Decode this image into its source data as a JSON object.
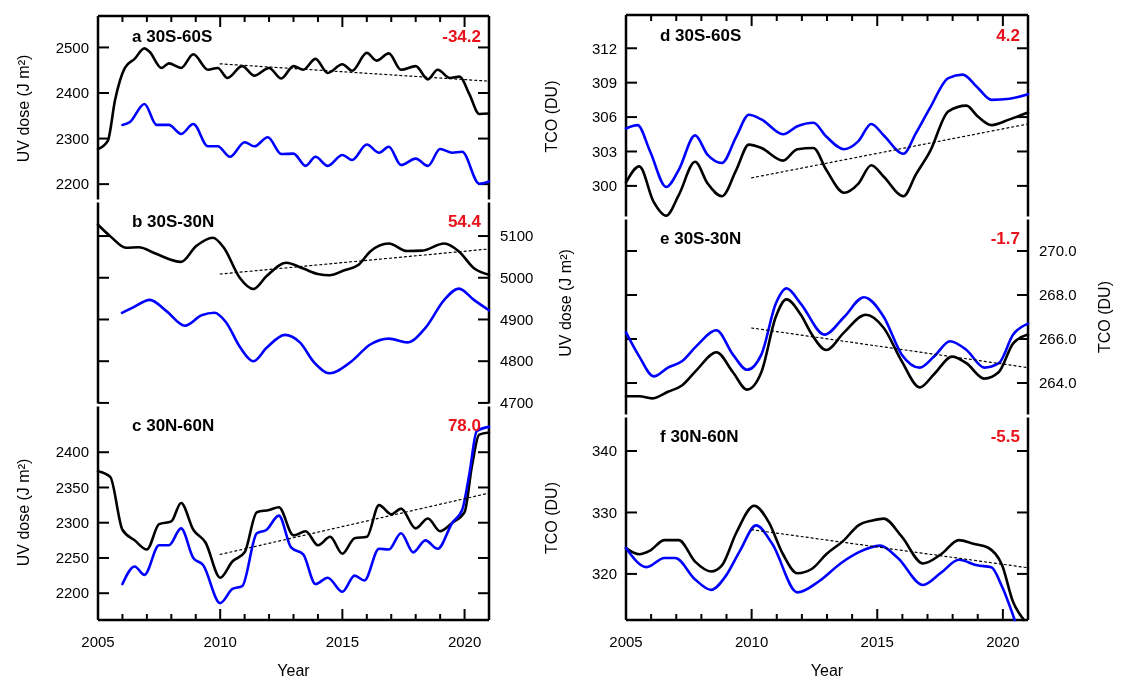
{
  "chart_data": [
    {
      "type": "line",
      "title": "a 30S-60S",
      "annotations": [
        "-34.2"
      ],
      "ylabel": "UV dose (J m²)",
      "xlim": [
        2005,
        2021
      ],
      "ylim": [
        2163,
        2569
      ],
      "yticks": [
        2200,
        2300,
        2400,
        2500
      ],
      "tick_labels": "y",
      "xticks": [
        2005,
        {
          "value": 2006,
          "label": null
        },
        {
          "value": 2007,
          "label": null
        },
        {
          "value": 2008,
          "label": null
        },
        {
          "value": 2009,
          "label": null
        },
        2010,
        {
          "value": 2011,
          "label": null
        },
        {
          "value": 2012,
          "label": null
        },
        {
          "value": 2013,
          "label": null
        },
        {
          "value": 2014,
          "label": null
        },
        2015,
        {
          "value": 2016,
          "label": null
        },
        {
          "value": 2017,
          "label": null
        },
        {
          "value": 2018,
          "label": null
        },
        {
          "value": 2019,
          "label": null
        },
        2020
      ],
      "series": [
        {
          "color": "#000000",
          "line_style": "solid",
          "x": [
            2005,
            2005.4,
            2005.7,
            2006.1,
            2006.5,
            2006.9,
            2007.1,
            2007.6,
            2007.9,
            2008.4,
            2008.9,
            2009.5,
            2009.9,
            2010.3,
            2010.9,
            2011.4,
            2012,
            2012.5,
            2013,
            2013.4,
            2013.9,
            2014.4,
            2015,
            2015.4,
            2016,
            2016.4,
            2016.9,
            2017.4,
            2018,
            2018.5,
            2018.9,
            2019.4,
            2019.8,
            2020.2,
            2020.6,
            2021
          ],
          "values": [
            2277,
            2295,
            2385,
            2455,
            2475,
            2498,
            2491,
            2455,
            2465,
            2455,
            2485,
            2451,
            2455,
            2433,
            2459,
            2438,
            2455,
            2432,
            2459,
            2451,
            2475,
            2444,
            2463,
            2449,
            2488,
            2471,
            2487,
            2451,
            2459,
            2430,
            2451,
            2433,
            2436,
            2397,
            2354,
            2355
          ]
        },
        {
          "color": "#0000ff",
          "line_style": "solid",
          "x": [
            2006,
            2006.3,
            2006.9,
            2007.4,
            2007.9,
            2008.4,
            2008.9,
            2009.5,
            2009.9,
            2010.4,
            2011,
            2011.4,
            2011.95,
            2012.5,
            2013,
            2013.5,
            2013.9,
            2014.4,
            2015,
            2015.4,
            2016,
            2016.5,
            2016.9,
            2017.4,
            2018,
            2018.5,
            2019,
            2019.5,
            2019.9,
            2020.6,
            2021
          ],
          "values": [
            2330,
            2336,
            2376,
            2330,
            2330,
            2310,
            2332,
            2283,
            2283,
            2260,
            2292,
            2283,
            2303,
            2266,
            2267,
            2240,
            2260,
            2240,
            2264,
            2253,
            2287,
            2269,
            2282,
            2242,
            2256,
            2240,
            2277,
            2269,
            2271,
            2201,
            2206
          ]
        },
        {
          "type": "line",
          "color": "#000000",
          "line_style": "dotted",
          "x": [
            2010,
            2021
          ],
          "values": [
            2464,
            2426
          ]
        }
      ]
    },
    {
      "type": "line",
      "title": "b 30S-30N",
      "annotations": [
        "54.4"
      ],
      "y2label": "UV dose (J m²)",
      "xlim": [
        2005,
        2021
      ],
      "y2lim": [
        4695,
        5184
      ],
      "y2ticks": [
        4700,
        4800,
        4900,
        5000,
        5100
      ],
      "tick_labels": "y2",
      "series": [
        {
          "color": "#000000",
          "line_style": "solid",
          "axis": "y2",
          "x": [
            2005,
            2005.53,
            2006.14,
            2006.67,
            2007.35,
            2008.4,
            2009.02,
            2009.7,
            2010.15,
            2010.8,
            2011.36,
            2011.9,
            2012.7,
            2013.4,
            2014,
            2014.47,
            2015.08,
            2015.68,
            2016.14,
            2016.9,
            2017.65,
            2018.26,
            2019.17,
            2019.77,
            2020.4,
            2021
          ],
          "values": [
            5127,
            5098,
            5072,
            5073,
            5058,
            5038,
            5076,
            5096,
            5072,
            5000,
            4973,
            5004,
            5036,
            5022,
            5009,
            5006,
            5018,
            5032,
            5063,
            5082,
            5064,
            5065,
            5082,
            5063,
            5022,
            5007
          ]
        },
        {
          "color": "#0000ff",
          "line_style": "solid",
          "axis": "y2",
          "x": [
            2005.98,
            2006.44,
            2007.12,
            2007.8,
            2008.56,
            2009.24,
            2009.77,
            2010.23,
            2010.83,
            2011.36,
            2011.9,
            2012.65,
            2013.26,
            2013.86,
            2014.47,
            2015.38,
            2016.14,
            2016.9,
            2017.65,
            2018.4,
            2019.17,
            2019.77,
            2020.38,
            2021
          ],
          "values": [
            4916,
            4929,
            4947,
            4920,
            4885,
            4910,
            4916,
            4894,
            4832,
            4800,
            4832,
            4863,
            4845,
            4796,
            4771,
            4800,
            4840,
            4854,
            4845,
            4880,
            4947,
            4974,
            4947,
            4922
          ]
        },
        {
          "type": "line",
          "color": "#000000",
          "line_style": "dotted",
          "axis": "y2",
          "x": [
            2010,
            2021
          ],
          "values": [
            5009,
            5069
          ]
        }
      ]
    },
    {
      "type": "line",
      "title": "c 30N-60N",
      "annotations": [
        "78.0"
      ],
      "ylabel": "UV dose (J m²)",
      "xlabel": "Year",
      "xlim": [
        2005,
        2021
      ],
      "ylim": [
        2162,
        2467
      ],
      "yticks": [
        2200,
        2250,
        2300,
        2350,
        2400
      ],
      "xticks": [
        2005,
        {
          "value": 2006,
          "label": null
        },
        {
          "value": 2007,
          "label": null
        },
        {
          "value": 2008,
          "label": null
        },
        {
          "value": 2009,
          "label": null
        },
        2010,
        {
          "value": 2011,
          "label": null
        },
        {
          "value": 2012,
          "label": null
        },
        {
          "value": 2013,
          "label": null
        },
        {
          "value": 2014,
          "label": null
        },
        2015,
        {
          "value": 2016,
          "label": null
        },
        {
          "value": 2017,
          "label": null
        },
        {
          "value": 2018,
          "label": null
        },
        {
          "value": 2019,
          "label": null
        },
        2020
      ],
      "series": [
        {
          "color": "#000000",
          "line_style": "solid",
          "x": [
            2005,
            2005.5,
            2006,
            2006.5,
            2007,
            2007.5,
            2008,
            2008.4,
            2008.9,
            2009.4,
            2010,
            2010.5,
            2011,
            2011.5,
            2012,
            2012.4,
            2013,
            2013.5,
            2014,
            2014.5,
            2015,
            2015.5,
            2016,
            2016.5,
            2017,
            2017.4,
            2018,
            2018.5,
            2019,
            2019.5,
            2020,
            2020.3,
            2020.6,
            2021
          ],
          "values": [
            2373,
            2365,
            2290,
            2275,
            2262,
            2298,
            2302,
            2328,
            2290,
            2272,
            2222,
            2245,
            2258,
            2315,
            2318,
            2322,
            2282,
            2288,
            2268,
            2280,
            2256,
            2278,
            2280,
            2325,
            2312,
            2320,
            2292,
            2306,
            2288,
            2300,
            2315,
            2380,
            2425,
            2428
          ]
        },
        {
          "color": "#0000ff",
          "line_style": "solid",
          "x": [
            2006,
            2006.5,
            2006.9,
            2007.5,
            2007.9,
            2008.4,
            2008.9,
            2009.3,
            2010,
            2010.5,
            2010.9,
            2011.5,
            2011.9,
            2012.4,
            2012.9,
            2013.4,
            2013.9,
            2014.4,
            2015,
            2015.5,
            2015.9,
            2016.5,
            2016.9,
            2017.4,
            2017.9,
            2018.4,
            2018.9,
            2019.5,
            2019.9,
            2020.2,
            2020.5,
            2021
          ],
          "values": [
            2213,
            2238,
            2226,
            2268,
            2268,
            2292,
            2250,
            2240,
            2186,
            2206,
            2210,
            2285,
            2290,
            2310,
            2265,
            2255,
            2213,
            2222,
            2202,
            2225,
            2218,
            2263,
            2262,
            2285,
            2258,
            2275,
            2263,
            2300,
            2318,
            2370,
            2430,
            2436
          ]
        },
        {
          "type": "line",
          "color": "#000000",
          "line_style": "dotted",
          "x": [
            2010,
            2021
          ],
          "values": [
            2255,
            2342
          ]
        }
      ]
    },
    {
      "type": "line",
      "title": "d 30S-60S",
      "annotations": [
        "4.2"
      ],
      "ylabel": "TCO (DU)",
      "xlim": [
        2005,
        2021
      ],
      "ylim": [
        297.2,
        314.9
      ],
      "yticks": [
        300,
        303,
        306,
        309,
        312
      ],
      "tick_labels": "y",
      "xticks": [
        2005,
        {
          "value": 2006,
          "label": null
        },
        {
          "value": 2007,
          "label": null
        },
        {
          "value": 2008,
          "label": null
        },
        {
          "value": 2009,
          "label": null
        },
        2010,
        {
          "value": 2011,
          "label": null
        },
        {
          "value": 2012,
          "label": null
        },
        {
          "value": 2013,
          "label": null
        },
        {
          "value": 2014,
          "label": null
        },
        2015,
        {
          "value": 2016,
          "label": null
        },
        {
          "value": 2017,
          "label": null
        },
        {
          "value": 2018,
          "label": null
        },
        {
          "value": 2019,
          "label": null
        },
        2020
      ],
      "series": [
        {
          "color": "#000000",
          "line_style": "solid",
          "x": [
            2005,
            2005.53,
            2006.1,
            2006.6,
            2007.1,
            2007.75,
            2008.25,
            2008.82,
            2009.39,
            2009.89,
            2010.39,
            2011.25,
            2011.82,
            2012.46,
            2012.97,
            2013.68,
            2014.25,
            2014.76,
            2015.26,
            2016.04,
            2016.54,
            2017.1,
            2017.83,
            2018.55,
            2018.98,
            2019.55,
            2020.27,
            2021
          ],
          "values": [
            300.3,
            301.7,
            298.6,
            297.4,
            299.2,
            302.1,
            300.2,
            299.1,
            301.4,
            303.6,
            303.3,
            302.2,
            303.2,
            303.3,
            301.4,
            299.4,
            300.2,
            301.8,
            300.8,
            299.1,
            301.0,
            303.0,
            306.5,
            307.0,
            306.1,
            305.3,
            305.8,
            306.4
          ]
        },
        {
          "color": "#0000ff",
          "line_style": "solid",
          "x": [
            2005,
            2005.46,
            2005.96,
            2006.6,
            2007.1,
            2007.75,
            2008.25,
            2008.82,
            2009.39,
            2009.89,
            2010.39,
            2011.25,
            2011.82,
            2012.46,
            2012.97,
            2013.68,
            2014.25,
            2014.76,
            2015.26,
            2016.04,
            2016.54,
            2017.1,
            2017.83,
            2018.4,
            2018.98,
            2019.55,
            2020.27,
            2021
          ],
          "values": [
            305.0,
            305.3,
            303.0,
            299.9,
            301.4,
            304.4,
            302.7,
            302.0,
            304.3,
            306.2,
            305.8,
            304.5,
            305.2,
            305.5,
            304.3,
            303.2,
            303.9,
            305.4,
            304.4,
            302.8,
            304.6,
            306.8,
            309.4,
            309.7,
            308.6,
            307.5,
            307.6,
            308.0
          ]
        },
        {
          "type": "line",
          "color": "#000000",
          "line_style": "dotted",
          "x": [
            2010,
            2021
          ],
          "values": [
            300.7,
            305.4
          ]
        }
      ]
    },
    {
      "type": "line",
      "title": "e 30S-30N",
      "annotations": [
        "-1.7"
      ],
      "y2label": "TCO (DU)",
      "xlim": [
        2005,
        2021
      ],
      "y2lim": [
        262.5,
        271.5
      ],
      "y2ticks": [
        {
          "value": 264,
          "label": "264.0"
        },
        {
          "value": 266,
          "label": "266.0"
        },
        {
          "value": 268,
          "label": "268.0"
        },
        {
          "value": 270,
          "label": "270.0"
        }
      ],
      "tick_labels": "y2",
      "series": [
        {
          "color": "#000000",
          "line_style": "solid",
          "axis": "y2",
          "x": [
            2005,
            2005.53,
            2006.03,
            2006.67,
            2007.24,
            2007.82,
            2008.6,
            2009.25,
            2009.82,
            2010.39,
            2010.96,
            2011.39,
            2011.96,
            2012.4,
            2012.97,
            2013.68,
            2014.54,
            2015.26,
            2015.97,
            2016.69,
            2017.26,
            2017.98,
            2018.55,
            2019.26,
            2019.84,
            2020.41,
            2021
          ],
          "values": [
            263.4,
            263.4,
            263.3,
            263.6,
            263.9,
            264.6,
            265.4,
            264.5,
            263.7,
            264.5,
            267.0,
            267.8,
            267.1,
            266.2,
            265.5,
            266.3,
            267.1,
            266.5,
            265.0,
            263.8,
            264.4,
            265.2,
            264.9,
            264.2,
            264.5,
            265.8,
            266.2
          ]
        },
        {
          "color": "#0000ff",
          "line_style": "solid",
          "axis": "y2",
          "x": [
            2005,
            2005.53,
            2006.1,
            2006.67,
            2007.24,
            2007.82,
            2008.6,
            2009.25,
            2009.82,
            2010.39,
            2010.96,
            2011.39,
            2011.96,
            2012.9,
            2013.68,
            2014.47,
            2015.26,
            2015.97,
            2016.69,
            2017.26,
            2017.9,
            2018.55,
            2019.26,
            2019.84,
            2020.41,
            2021
          ],
          "values": [
            266.3,
            265.2,
            264.3,
            264.7,
            265.0,
            265.7,
            266.4,
            265.3,
            264.6,
            265.3,
            267.6,
            268.3,
            267.6,
            266.2,
            267.0,
            267.9,
            267.0,
            265.3,
            264.7,
            265.2,
            265.9,
            265.5,
            264.7,
            264.9,
            266.2,
            266.7
          ]
        },
        {
          "type": "line",
          "color": "#000000",
          "line_style": "dotted",
          "axis": "y2",
          "x": [
            2010,
            2021
          ],
          "values": [
            266.5,
            264.7
          ]
        }
      ]
    },
    {
      "type": "line",
      "title": "f 30N-60N",
      "annotations": [
        "-5.5"
      ],
      "ylabel": "TCO (DU)",
      "xlabel": "Year",
      "xlim": [
        2005,
        2021
      ],
      "ylim": [
        312.5,
        345.7
      ],
      "yticks": [
        320,
        330,
        340
      ],
      "xticks": [
        2005,
        {
          "value": 2006,
          "label": null
        },
        {
          "value": 2007,
          "label": null
        },
        {
          "value": 2008,
          "label": null
        },
        {
          "value": 2009,
          "label": null
        },
        2010,
        {
          "value": 2011,
          "label": null
        },
        {
          "value": 2012,
          "label": null
        },
        {
          "value": 2013,
          "label": null
        },
        {
          "value": 2014,
          "label": null
        },
        2015,
        {
          "value": 2016,
          "label": null
        },
        {
          "value": 2017,
          "label": null
        },
        {
          "value": 2018,
          "label": null
        },
        {
          "value": 2019,
          "label": null
        },
        2020
      ],
      "series": [
        {
          "color": "#000000",
          "line_style": "solid",
          "x": [
            2005,
            2005.53,
            2005.96,
            2006.53,
            2007.1,
            2007.75,
            2008.39,
            2008.82,
            2009.39,
            2010.1,
            2010.67,
            2011.25,
            2011.82,
            2012.39,
            2012.97,
            2013.68,
            2014.25,
            2014.82,
            2015.26,
            2015.97,
            2016.82,
            2017.54,
            2018.25,
            2018.83,
            2019.4,
            2019.97,
            2020.4,
            2020.84
          ],
          "values": [
            324.2,
            323.2,
            323.8,
            325.5,
            325.5,
            322.0,
            320.4,
            321.4,
            326.7,
            331.1,
            328.5,
            323.2,
            320.1,
            320.8,
            323.2,
            325.5,
            327.9,
            328.7,
            329.0,
            326.1,
            321.7,
            323.2,
            325.5,
            324.9,
            324.3,
            321.4,
            315.5,
            312.5
          ]
        },
        {
          "color": "#0000ff",
          "line_style": "solid",
          "x": [
            2005,
            2005.82,
            2006.53,
            2006.96,
            2007.75,
            2008.39,
            2008.96,
            2009.54,
            2010.18,
            2010.82,
            2011.82,
            2012.68,
            2013.54,
            2014.25,
            2015.11,
            2015.82,
            2016.82,
            2017.54,
            2018.25,
            2018.97,
            2019.54,
            2019.97,
            2020.47
          ],
          "values": [
            324.2,
            321.1,
            322.6,
            322.6,
            319.1,
            317.4,
            319.6,
            323.8,
            327.9,
            324.9,
            317.0,
            318.8,
            321.7,
            323.5,
            324.6,
            322.6,
            318.2,
            320.2,
            322.3,
            321.4,
            321.1,
            317.9,
            312.5
          ]
        },
        {
          "type": "line",
          "color": "#000000",
          "line_style": "dotted",
          "x": [
            2010,
            2021
          ],
          "values": [
            327.2,
            321.0
          ]
        }
      ]
    }
  ]
}
